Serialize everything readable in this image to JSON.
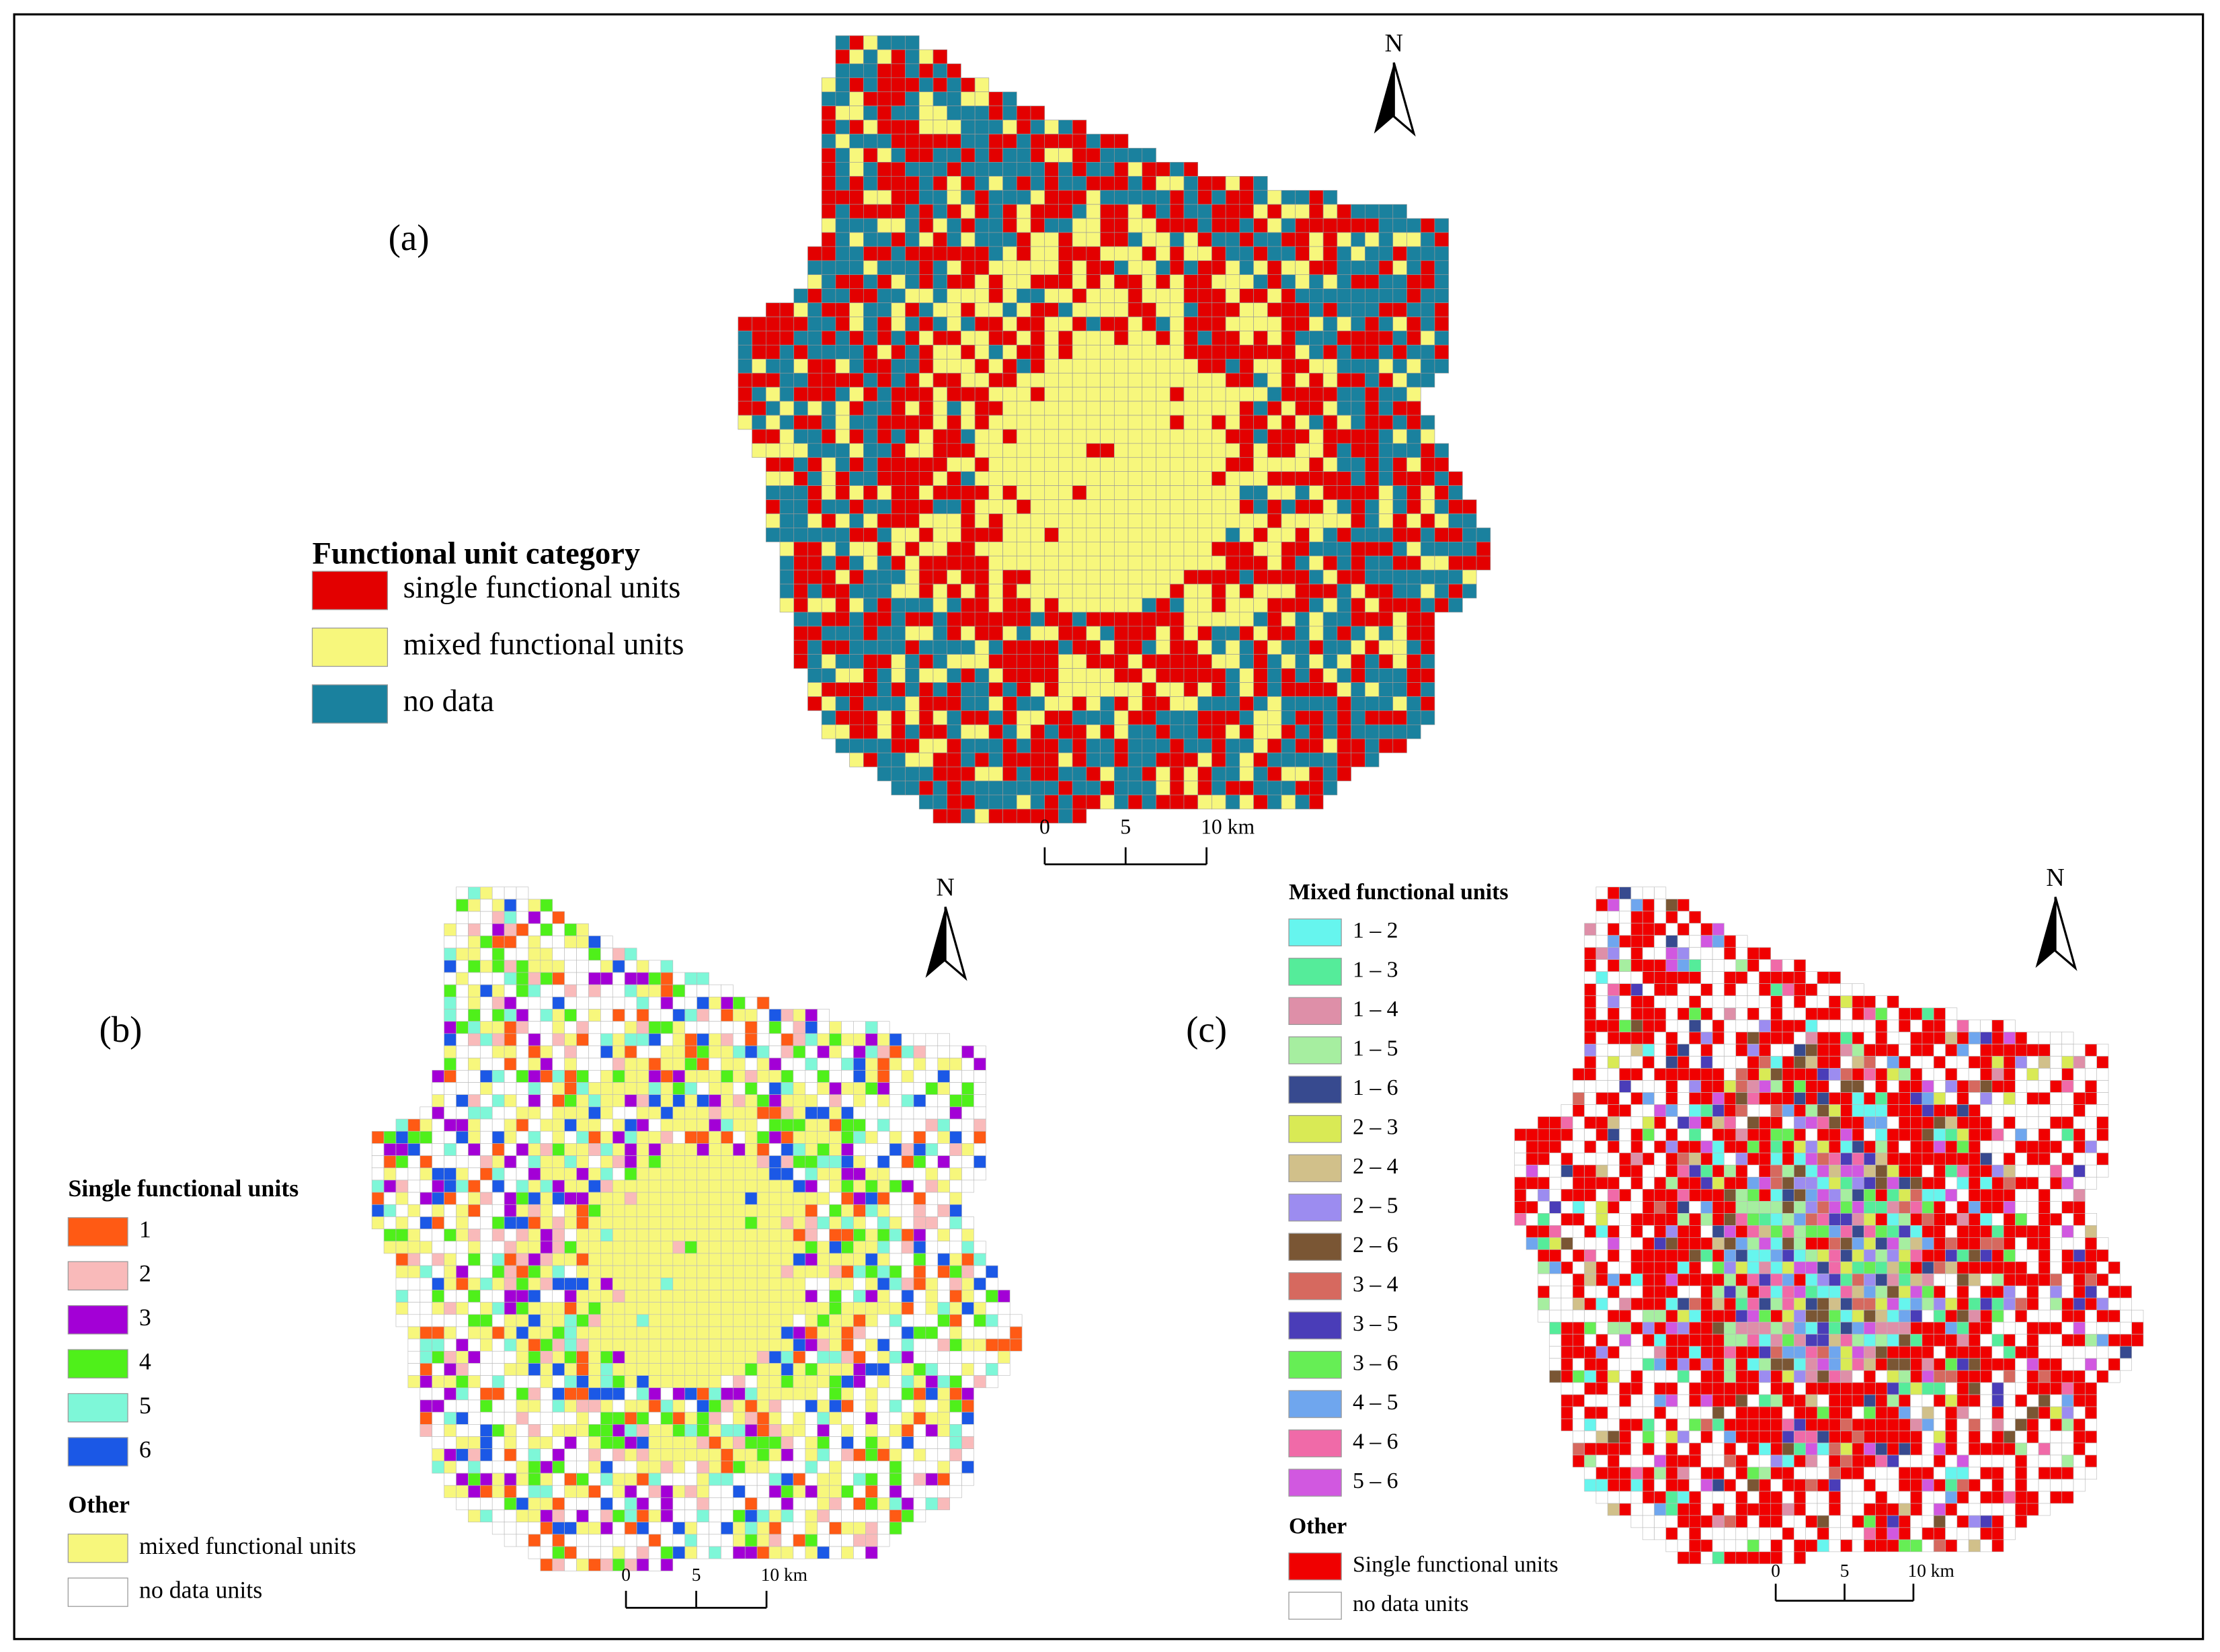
{
  "panels": [
    {
      "label": "(a)",
      "north": "N",
      "legend": [
        {
          "title": "Functional unit category",
          "items": [
            {
              "label": "single functional units",
              "color": "#e30000"
            },
            {
              "label": "mixed functional units",
              "color": "#f7f77c"
            },
            {
              "label": "no data",
              "color": "#1a819e"
            }
          ]
        }
      ],
      "scale_bar": [
        "0",
        "5",
        "10 km"
      ]
    },
    {
      "label": "(b)",
      "north": "N",
      "legend": [
        {
          "title": "Single functional units",
          "items": [
            {
              "label": "1",
              "color": "#ff5a14"
            },
            {
              "label": "2",
              "color": "#f9baba"
            },
            {
              "label": "3",
              "color": "#a300d6"
            },
            {
              "label": "4",
              "color": "#4ff01a"
            },
            {
              "label": "5",
              "color": "#7ef7d8"
            },
            {
              "label": "6",
              "color": "#1b58e6"
            }
          ]
        },
        {
          "title": "Other",
          "items": [
            {
              "label": "mixed functional units",
              "color": "#f7f77c"
            },
            {
              "label": "no data units",
              "color": "#ffffff"
            }
          ]
        }
      ],
      "scale_bar": [
        "0",
        "5",
        "10 km"
      ]
    },
    {
      "label": "(c)",
      "north": "N",
      "legend": [
        {
          "title": "Mixed functional units",
          "items": [
            {
              "label": "1 – 2",
              "color": "#66f5ee"
            },
            {
              "label": "1 – 3",
              "color": "#55ec9a"
            },
            {
              "label": "1 – 4",
              "color": "#de8fa8"
            },
            {
              "label": "1 – 5",
              "color": "#a6eea0"
            },
            {
              "label": "1 – 6",
              "color": "#374a8f"
            },
            {
              "label": "2 – 3",
              "color": "#d9ea55"
            },
            {
              "label": "2 – 4",
              "color": "#d1c08a"
            },
            {
              "label": "2 – 5",
              "color": "#9c8cf0"
            },
            {
              "label": "2 – 6",
              "color": "#7a5634"
            },
            {
              "label": "3 – 4",
              "color": "#d6695f"
            },
            {
              "label": "3 – 5",
              "color": "#4a3db8"
            },
            {
              "label": "3 – 6",
              "color": "#66ee55"
            },
            {
              "label": "4 – 5",
              "color": "#6fa6ee"
            },
            {
              "label": "4 – 6",
              "color": "#f06aa8"
            },
            {
              "label": "5 – 6",
              "color": "#d158e0"
            }
          ]
        },
        {
          "title": "Other",
          "items": [
            {
              "label": "Single functional units",
              "color": "#f00000"
            },
            {
              "label": "no data units",
              "color": "#ffffff"
            }
          ]
        }
      ],
      "scale_bar": [
        "0",
        "5",
        "10 km"
      ]
    }
  ]
}
